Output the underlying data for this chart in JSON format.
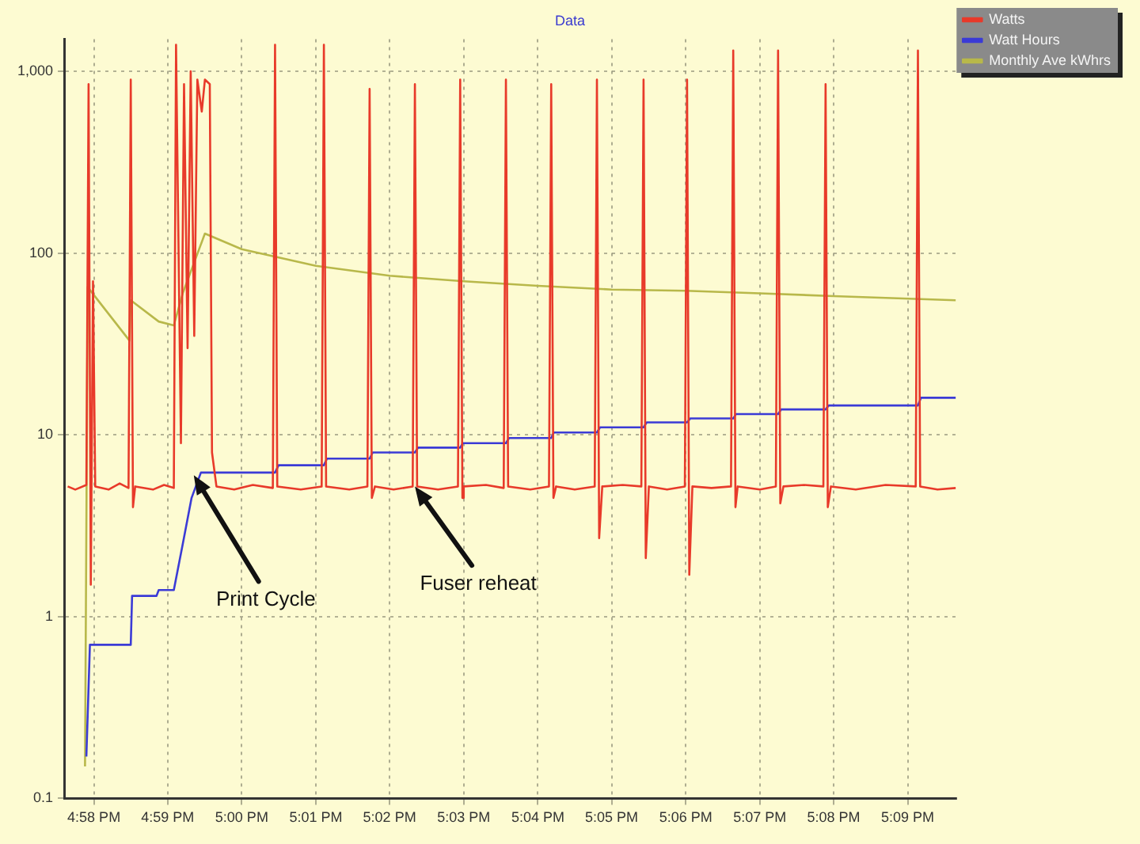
{
  "chart_data": {
    "type": "line",
    "title": "Data",
    "legend": "top right",
    "grid": true,
    "marker": "none",
    "line_style": "solid",
    "log": "y",
    "xlim": [
      16.96,
      17.161
    ],
    "xticks": [
      {
        "value": 16.9667,
        "label": "4:58 PM"
      },
      {
        "value": 16.9833,
        "label": "4:59 PM"
      },
      {
        "value": 17,
        "label": "5:00 PM"
      },
      {
        "value": 17.0167,
        "label": "5:01 PM"
      },
      {
        "value": 17.0333,
        "label": "5:02 PM"
      },
      {
        "value": 17.05,
        "label": "5:03 PM"
      },
      {
        "value": 17.0667,
        "label": "5:04 PM"
      },
      {
        "value": 17.0833,
        "label": "5:05 PM"
      },
      {
        "value": 17.1,
        "label": "5:06 PM"
      },
      {
        "value": 17.1167,
        "label": "5:07 PM"
      },
      {
        "value": 17.1333,
        "label": "5:08 PM"
      },
      {
        "value": 17.15,
        "label": "5:09 PM"
      }
    ],
    "ylim": [
      0.1,
      1500
    ],
    "yticks": [
      0.1,
      1,
      10,
      100,
      {
        "value": 1000,
        "label": "1,000"
      }
    ],
    "annotations": [
      {
        "text": "Print Cycle",
        "x": 16.9892,
        "y": 6
      },
      {
        "text": "Fuser reheat",
        "x": 17.039,
        "y": 5.2
      }
    ],
    "series": [
      {
        "name": "Watts",
        "color": "#e83a2a",
        "x": [
          16.9608,
          16.9625,
          16.965,
          16.9655,
          16.966,
          16.9665,
          16.967,
          16.97,
          16.9725,
          16.9745,
          16.975,
          16.9755,
          16.976,
          16.98,
          16.9825,
          16.9847,
          16.9852,
          16.9863,
          16.987,
          16.9878,
          16.9885,
          16.9893,
          16.99,
          16.991,
          16.9917,
          16.9928,
          16.9933,
          16.9943,
          16.9983,
          17.0025,
          17.007,
          17.0075,
          17.008,
          17.0133,
          17.018,
          17.0185,
          17.019,
          17.0242,
          17.0283,
          17.0288,
          17.0293,
          17.03,
          17.0342,
          17.0385,
          17.039,
          17.0395,
          17.0442,
          17.0487,
          17.0492,
          17.0497,
          17.05,
          17.055,
          17.059,
          17.0595,
          17.06,
          17.065,
          17.0692,
          17.0697,
          17.0702,
          17.0708,
          17.075,
          17.0795,
          17.08,
          17.0805,
          17.0812,
          17.0858,
          17.09,
          17.0905,
          17.091,
          17.0917,
          17.0958,
          17.0998,
          17.1003,
          17.1008,
          17.1015,
          17.1058,
          17.1102,
          17.1107,
          17.1112,
          17.1117,
          17.1167,
          17.1203,
          17.1208,
          17.1213,
          17.122,
          17.1267,
          17.131,
          17.1315,
          17.132,
          17.1327,
          17.1383,
          17.145,
          17.1518,
          17.1523,
          17.1528,
          17.1567,
          17.1608
        ],
        "values": [
          5.2,
          5.0,
          5.3,
          850,
          1.5,
          70,
          5.2,
          5.0,
          5.4,
          5.1,
          900,
          4.0,
          5.2,
          5.0,
          5.3,
          5.1,
          1400,
          9,
          850,
          30,
          1000,
          35,
          900,
          600,
          900,
          850,
          8,
          5.2,
          5.0,
          5.3,
          5.1,
          1400,
          5.2,
          5.0,
          5.2,
          1400,
          5.2,
          5.0,
          5.2,
          800,
          4.5,
          5.2,
          5.0,
          5.2,
          850,
          5.2,
          5.0,
          5.2,
          900,
          4.5,
          5.2,
          5.3,
          5.1,
          900,
          5.2,
          5.0,
          5.2,
          850,
          4.5,
          5.2,
          5.0,
          5.2,
          900,
          2.7,
          5.2,
          5.3,
          5.2,
          900,
          2.1,
          5.2,
          5.0,
          5.2,
          900,
          1.7,
          5.2,
          5.1,
          5.2,
          1300,
          4.0,
          5.2,
          5.0,
          5.2,
          1300,
          4.2,
          5.2,
          5.3,
          5.2,
          850,
          4.0,
          5.2,
          5.0,
          5.3,
          5.2,
          1300,
          5.2,
          5.0,
          5.1
        ]
      },
      {
        "name": "Watt Hours",
        "color": "#3b3bd6",
        "x": [
          16.965,
          16.9658,
          16.975,
          16.9753,
          16.9808,
          16.9813,
          16.9847,
          16.9867,
          16.9887,
          16.9908,
          17.0075,
          17.0083,
          17.0185,
          17.0192,
          17.0288,
          17.0295,
          17.039,
          17.0397,
          17.0492,
          17.0498,
          17.0595,
          17.0602,
          17.0697,
          17.0703,
          17.08,
          17.0807,
          17.0905,
          17.0912,
          17.1003,
          17.101,
          17.1107,
          17.1113,
          17.1208,
          17.1215,
          17.1315,
          17.1322,
          17.1523,
          17.153,
          17.1608
        ],
        "values": [
          0.17,
          0.7,
          0.7,
          1.3,
          1.3,
          1.4,
          1.4,
          2.5,
          4.5,
          6.2,
          6.2,
          6.8,
          6.8,
          7.4,
          7.4,
          8.0,
          8.0,
          8.5,
          8.5,
          9.0,
          9.0,
          9.6,
          9.6,
          10.3,
          10.3,
          11.0,
          11.0,
          11.7,
          11.7,
          12.3,
          12.3,
          13.0,
          13.0,
          13.8,
          13.8,
          14.5,
          14.5,
          16.0,
          16.0
        ]
      },
      {
        "name": "Monthly Ave kWhrs",
        "color": "#b8b84a",
        "x": [
          16.9647,
          16.9653,
          16.9747,
          16.975,
          16.9813,
          16.9847,
          16.9867,
          16.9917,
          17.0,
          17.0167,
          17.0333,
          17.05,
          17.0667,
          17.0833,
          17.1,
          17.1167,
          17.1333,
          17.1608
        ],
        "values": [
          0.15,
          65,
          33,
          55,
          42,
          40,
          60,
          128,
          105,
          85,
          75,
          70,
          66,
          63,
          62,
          60,
          58,
          55
        ]
      }
    ]
  }
}
